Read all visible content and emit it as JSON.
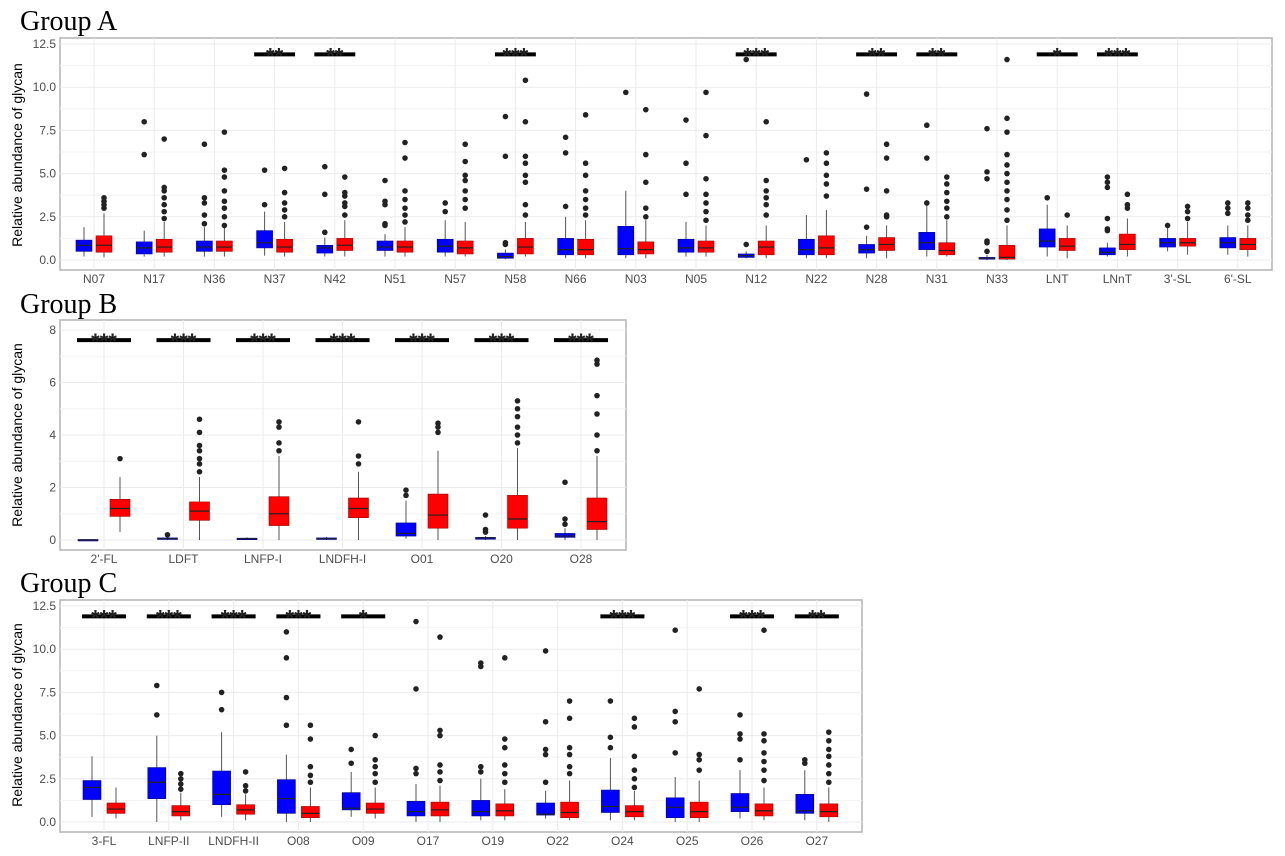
{
  "colors": {
    "blue": "#0000ff",
    "red": "#ff0000",
    "outlier": "#222222",
    "grid": "#ebebeb"
  },
  "chart_data": [
    {
      "type": "box",
      "title": "Group A",
      "ylabel": "Relative abundance of glycan",
      "ylim": [
        0,
        12.5
      ],
      "yticks": [
        "0.0",
        "2.5",
        "5.0",
        "7.5",
        "10.0",
        "12.5"
      ],
      "grid": true,
      "box_format": "[whisker_low, q1, median, q3, whisker_high, outliers]",
      "categories": [
        "N07",
        "N17",
        "N36",
        "N37",
        "N42",
        "N51",
        "N57",
        "N58",
        "N66",
        "N03",
        "N05",
        "N12",
        "N22",
        "N28",
        "N31",
        "N33",
        "LNT",
        "LNnT",
        "3'-SL",
        "6'-SL"
      ],
      "significance": [
        "",
        "",
        "",
        "**",
        "**",
        "",
        "",
        "***",
        "",
        "",
        "",
        "***",
        "",
        "**",
        "**",
        "",
        "*",
        "***",
        "",
        ""
      ],
      "blue": [
        [
          0.2,
          0.5,
          0.85,
          1.15,
          1.9,
          []
        ],
        [
          0.2,
          0.35,
          0.7,
          1.05,
          1.7,
          [
            6.1,
            8.0
          ]
        ],
        [
          0.2,
          0.5,
          0.75,
          1.1,
          1.9,
          [
            2.1,
            2.6,
            3.3,
            3.6,
            6.7
          ]
        ],
        [
          0.25,
          0.7,
          1.0,
          1.7,
          2.8,
          [
            3.2,
            5.2
          ]
        ],
        [
          0.2,
          0.4,
          0.7,
          0.85,
          1.3,
          [
            1.6,
            3.8,
            5.4
          ]
        ],
        [
          0.2,
          0.55,
          0.75,
          1.1,
          1.5,
          [
            2.0,
            2.1,
            3.2,
            3.4,
            4.6
          ]
        ],
        [
          0.2,
          0.45,
          0.8,
          1.2,
          2.3,
          [
            2.8,
            3.3
          ]
        ],
        [
          0.05,
          0.1,
          0.2,
          0.4,
          0.6,
          [
            0.9,
            1.0,
            6.0,
            8.3
          ]
        ],
        [
          0.1,
          0.3,
          0.6,
          1.25,
          2.5,
          [
            3.1,
            6.2,
            7.1
          ]
        ],
        [
          0.1,
          0.3,
          0.65,
          1.95,
          4.0,
          [
            9.7
          ]
        ],
        [
          0.2,
          0.45,
          0.7,
          1.2,
          2.2,
          [
            3.8,
            5.6,
            8.1
          ]
        ],
        [
          0.1,
          0.15,
          0.25,
          0.35,
          0.5,
          [
            0.9,
            11.6
          ]
        ],
        [
          0.1,
          0.3,
          0.6,
          1.2,
          2.6,
          [
            5.8
          ]
        ],
        [
          0.1,
          0.4,
          0.6,
          0.9,
          1.4,
          [
            1.9,
            4.1,
            9.6
          ]
        ],
        [
          0.2,
          0.6,
          1.0,
          1.6,
          3.2,
          [
            3.3,
            5.9,
            7.8
          ]
        ],
        [
          0.0,
          0.05,
          0.1,
          0.15,
          0.3,
          [
            0.5,
            1.0,
            1.1,
            4.7,
            5.1,
            7.6
          ]
        ],
        [
          0.2,
          0.75,
          1.1,
          1.8,
          3.2,
          [
            3.6
          ]
        ],
        [
          0.2,
          0.3,
          0.45,
          0.7,
          1.0,
          [
            1.7,
            1.8,
            2.4,
            4.2,
            4.5,
            4.8
          ]
        ],
        [
          0.5,
          0.75,
          1.0,
          1.25,
          2.0,
          [
            2.0
          ]
        ],
        [
          0.3,
          0.7,
          1.0,
          1.3,
          2.0,
          [
            2.7,
            3.0,
            3.3
          ]
        ]
      ],
      "red": [
        [
          0.15,
          0.45,
          0.85,
          1.4,
          2.7,
          [
            3.0,
            3.2,
            3.4,
            3.6
          ]
        ],
        [
          0.2,
          0.45,
          0.75,
          1.2,
          2.2,
          [
            2.4,
            2.8,
            3.2,
            3.6,
            4.0,
            4.2,
            7.0
          ]
        ],
        [
          0.2,
          0.5,
          0.75,
          1.1,
          1.9,
          [
            2.0,
            2.5,
            3.0,
            3.4,
            4.0,
            4.8,
            5.2,
            7.4
          ]
        ],
        [
          0.2,
          0.45,
          0.75,
          1.2,
          2.2,
          [
            2.5,
            2.9,
            3.3,
            3.9,
            5.3
          ]
        ],
        [
          0.2,
          0.55,
          0.85,
          1.25,
          2.3,
          [
            2.6,
            3.1,
            3.3,
            3.7,
            3.9,
            4.8
          ]
        ],
        [
          0.2,
          0.45,
          0.75,
          1.1,
          1.9,
          [
            2.2,
            2.6,
            3.0,
            3.5,
            4.0,
            5.9,
            6.8
          ]
        ],
        [
          0.2,
          0.35,
          0.7,
          1.1,
          2.2,
          [
            3.0,
            3.5,
            4.0,
            4.6,
            4.9,
            5.7,
            6.7
          ]
        ],
        [
          0.2,
          0.35,
          0.75,
          1.25,
          2.2,
          [
            2.6,
            3.2,
            4.5,
            4.9,
            5.6,
            6.0,
            8.0,
            10.4
          ]
        ],
        [
          0.1,
          0.3,
          0.6,
          1.2,
          2.3,
          [
            2.6,
            3.0,
            3.5,
            4.0,
            4.9,
            5.6,
            8.4
          ]
        ],
        [
          0.1,
          0.35,
          0.6,
          1.05,
          2.3,
          [
            2.5,
            3.0,
            4.5,
            6.1,
            8.7
          ]
        ],
        [
          0.2,
          0.45,
          0.7,
          1.1,
          2.0,
          [
            2.3,
            2.8,
            3.3,
            3.8,
            4.7,
            7.2,
            9.7
          ]
        ],
        [
          0.1,
          0.3,
          0.75,
          1.1,
          2.0,
          [
            2.6,
            3.2,
            3.6,
            4.0,
            4.6,
            8.0
          ]
        ],
        [
          0.1,
          0.3,
          0.7,
          1.4,
          2.9,
          [
            3.7,
            4.4,
            4.9,
            5.6,
            6.2
          ]
        ],
        [
          0.1,
          0.55,
          0.9,
          1.3,
          2.0,
          [
            2.5,
            2.6,
            4.0,
            5.9,
            6.7
          ]
        ],
        [
          0.2,
          0.3,
          0.55,
          1.0,
          2.3,
          [
            2.5,
            3.0,
            3.4,
            3.9,
            4.4,
            4.8
          ]
        ],
        [
          0.0,
          0.05,
          0.15,
          0.85,
          2.0,
          [
            2.3,
            2.9,
            3.5,
            4.0,
            4.5,
            5.0,
            5.5,
            6.1,
            7.4,
            8.2,
            11.6
          ]
        ],
        [
          0.1,
          0.55,
          0.8,
          1.25,
          2.0,
          [
            2.6
          ]
        ],
        [
          0.2,
          0.6,
          0.9,
          1.5,
          2.4,
          [
            3.0,
            3.2,
            3.8
          ]
        ],
        [
          0.3,
          0.8,
          1.0,
          1.25,
          2.2,
          [
            2.4,
            2.8,
            3.1
          ]
        ],
        [
          0.2,
          0.6,
          0.9,
          1.25,
          2.0,
          [
            2.3,
            2.6,
            3.0,
            3.3
          ]
        ]
      ]
    },
    {
      "type": "box",
      "title": "Group B",
      "ylabel": "Relative abundance of glycan",
      "ylim": [
        0,
        8
      ],
      "yticks": [
        "0",
        "2",
        "4",
        "6",
        "8"
      ],
      "grid": true,
      "box_format": "[whisker_low, q1, median, q3, whisker_high, outliers]",
      "categories": [
        "2'-FL",
        "LDFT",
        "LNFP-I",
        "LNDFH-I",
        "O01",
        "O20",
        "O28"
      ],
      "significance": [
        "***",
        "***",
        "***",
        "***",
        "***",
        "***",
        "***"
      ],
      "blue": [
        [
          0,
          0,
          0,
          0.02,
          0.03,
          []
        ],
        [
          0,
          0.02,
          0.05,
          0.08,
          0.1,
          [
            0.2
          ]
        ],
        [
          0,
          0.02,
          0.05,
          0.07,
          0.1,
          []
        ],
        [
          0,
          0.02,
          0.05,
          0.08,
          0.12,
          []
        ],
        [
          0.05,
          0.15,
          0.25,
          0.65,
          1.5,
          [
            1.7,
            1.9
          ]
        ],
        [
          0,
          0.03,
          0.08,
          0.1,
          0.15,
          [
            0.3,
            0.4,
            0.95
          ]
        ],
        [
          0,
          0.1,
          0.15,
          0.25,
          0.45,
          [
            0.6,
            0.8,
            2.2
          ]
        ]
      ],
      "red": [
        [
          0.3,
          0.9,
          1.2,
          1.55,
          2.4,
          [
            3.1
          ]
        ],
        [
          0,
          0.75,
          1.1,
          1.45,
          2.4,
          [
            2.6,
            2.9,
            3.1,
            3.4,
            3.6,
            4.1,
            4.6
          ]
        ],
        [
          0,
          0.55,
          1.0,
          1.65,
          3.2,
          [
            3.4,
            3.7,
            4.3,
            4.5
          ]
        ],
        [
          0,
          0.85,
          1.2,
          1.6,
          2.6,
          [
            2.9,
            3.2,
            4.5
          ]
        ],
        [
          0,
          0.45,
          0.95,
          1.75,
          3.4,
          [
            4.1,
            4.3,
            4.45
          ]
        ],
        [
          0,
          0.45,
          0.8,
          1.7,
          3.5,
          [
            3.7,
            4.0,
            4.3,
            4.7,
            5.0,
            5.3
          ]
        ],
        [
          0,
          0.4,
          0.7,
          1.6,
          3.2,
          [
            3.4,
            4.0,
            4.8,
            5.5,
            6.7,
            6.85
          ]
        ]
      ]
    },
    {
      "type": "box",
      "title": "Group C",
      "ylabel": "Relative abundance of glycan",
      "ylim": [
        0,
        12.5
      ],
      "yticks": [
        "0.0",
        "2.5",
        "5.0",
        "7.5",
        "10.0",
        "12.5"
      ],
      "grid": true,
      "box_format": "[whisker_low, q1, median, q3, whisker_high, outliers]",
      "categories": [
        "3-FL",
        "LNFP-II",
        "LNDFH-II",
        "O08",
        "O09",
        "O17",
        "O19",
        "O22",
        "O24",
        "O25",
        "O26",
        "O27"
      ],
      "significance": [
        "***",
        "***",
        "***",
        "***",
        "*",
        "",
        "",
        "",
        "***",
        "",
        "***",
        "**"
      ],
      "blue": [
        [
          0.3,
          1.3,
          2.0,
          2.4,
          3.8,
          []
        ],
        [
          0,
          1.35,
          2.3,
          3.15,
          5.0,
          [
            6.2,
            7.9
          ]
        ],
        [
          0.3,
          1.0,
          1.6,
          2.95,
          5.2,
          [
            6.5,
            7.5
          ]
        ],
        [
          0,
          0.5,
          1.35,
          2.45,
          3.9,
          [
            5.6,
            7.2,
            9.5,
            11.0
          ]
        ],
        [
          0.3,
          0.7,
          0.8,
          1.7,
          2.9,
          [
            3.4,
            4.2
          ]
        ],
        [
          0,
          0.35,
          0.6,
          1.2,
          2.2,
          [
            2.8,
            3.1,
            7.7,
            11.6
          ]
        ],
        [
          0.1,
          0.35,
          0.6,
          1.25,
          2.5,
          [
            2.9,
            3.2,
            9.0,
            9.2
          ]
        ],
        [
          0.2,
          0.4,
          0.45,
          1.1,
          1.8,
          [
            2.3,
            3.9,
            4.2,
            5.8,
            9.9
          ]
        ],
        [
          0.1,
          0.55,
          0.9,
          1.85,
          3.7,
          [
            4.3,
            4.9,
            7.0
          ]
        ],
        [
          0,
          0.25,
          0.85,
          1.4,
          2.6,
          [
            4.0,
            5.8,
            6.4,
            11.1
          ]
        ],
        [
          0.2,
          0.6,
          0.85,
          1.65,
          3.0,
          [
            3.6,
            4.8,
            5.1,
            6.2
          ]
        ],
        [
          0.1,
          0.5,
          0.65,
          1.6,
          3.0,
          [
            3.4,
            3.6
          ]
        ]
      ],
      "red": [
        [
          0.2,
          0.5,
          0.75,
          1.1,
          2.0,
          []
        ],
        [
          0.1,
          0.35,
          0.6,
          0.95,
          1.7,
          [
            1.9,
            2.2,
            2.5,
            2.8
          ]
        ],
        [
          0.1,
          0.45,
          0.7,
          1.0,
          1.6,
          [
            1.8,
            2.1,
            2.9
          ]
        ],
        [
          0,
          0.25,
          0.5,
          0.9,
          2.0,
          [
            2.3,
            2.7,
            3.2,
            4.8,
            5.6
          ]
        ],
        [
          0.2,
          0.5,
          0.75,
          1.1,
          2.0,
          [
            2.3,
            2.8,
            3.2,
            3.6,
            5.0
          ]
        ],
        [
          0,
          0.35,
          0.7,
          1.15,
          2.1,
          [
            2.4,
            2.9,
            3.3,
            5.0,
            5.3,
            10.7
          ]
        ],
        [
          0.1,
          0.35,
          0.65,
          1.05,
          1.9,
          [
            2.3,
            2.8,
            3.3,
            4.3,
            4.8,
            9.5
          ]
        ],
        [
          0.1,
          0.25,
          0.55,
          1.15,
          2.4,
          [
            2.8,
            3.2,
            3.9,
            4.3,
            6.0,
            7.0
          ]
        ],
        [
          0.1,
          0.3,
          0.6,
          0.95,
          1.8,
          [
            2.0,
            2.5,
            3.0,
            3.8,
            5.5,
            6.0
          ]
        ],
        [
          0,
          0.25,
          0.6,
          1.15,
          2.4,
          [
            3.0,
            3.6,
            3.9,
            7.7
          ]
        ],
        [
          0.1,
          0.35,
          0.65,
          1.05,
          2.0,
          [
            2.4,
            3.0,
            3.5,
            4.0,
            4.7,
            5.1,
            11.1
          ]
        ],
        [
          0,
          0.3,
          0.6,
          1.05,
          2.0,
          [
            2.3,
            2.8,
            3.3,
            3.8,
            4.2,
            4.7,
            5.2
          ]
        ]
      ]
    }
  ]
}
